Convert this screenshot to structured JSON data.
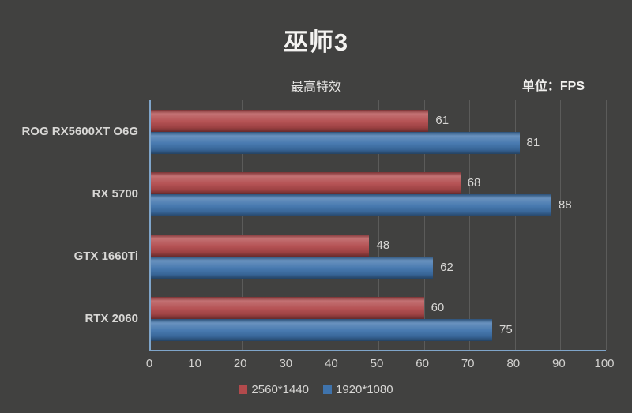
{
  "chart_data": {
    "type": "bar",
    "orientation": "horizontal",
    "title": "巫师3",
    "subtitle": "最高特效",
    "unit_label": "单位：FPS",
    "categories": [
      "ROG RX5600XT O6G",
      "RX 5700",
      "GTX 1660Ti",
      "RTX 2060"
    ],
    "series": [
      {
        "name": "2560*1440",
        "color": "#b24a4c",
        "values": [
          61,
          68,
          48,
          60
        ]
      },
      {
        "name": "1920*1080",
        "color": "#3f73ac",
        "values": [
          81,
          88,
          62,
          75
        ]
      }
    ],
    "xlim": [
      0,
      100
    ],
    "x_ticks": [
      0,
      10,
      20,
      30,
      40,
      50,
      60,
      70,
      80,
      90,
      100
    ],
    "grid": true,
    "legend_position": "bottom",
    "value_labels": true
  },
  "colors": {
    "background": "#414140",
    "gridline": "#5b5b5a",
    "axis_line": "#7fa5ca",
    "text": "#d8d7d5",
    "title_text": "#f4f3f1"
  }
}
